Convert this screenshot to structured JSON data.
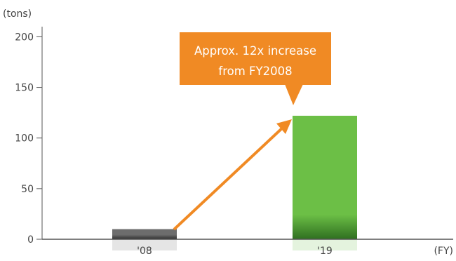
{
  "chart_data": {
    "type": "bar",
    "categories": [
      "'08",
      "'19"
    ],
    "values": [
      10,
      122
    ],
    "ylabel": "(tons)",
    "xlabel": "(FY)",
    "ylim": [
      0,
      210
    ],
    "yticks": [
      0,
      50,
      100,
      150,
      200
    ],
    "grid": false,
    "bar_colors": [
      "#6d6d6d",
      "#6cbf46"
    ],
    "annotation": {
      "lines": [
        "Approx. 12x increase",
        "from FY2008"
      ],
      "color": "#f08a24",
      "arrow_color": "#f08a24"
    }
  }
}
